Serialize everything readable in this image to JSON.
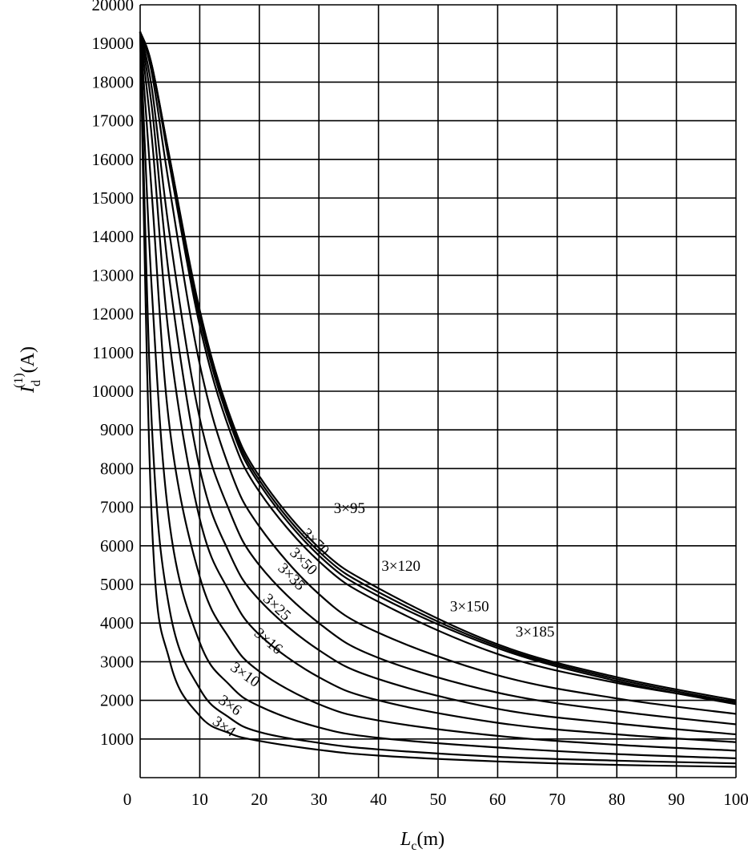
{
  "chart_data": {
    "type": "line",
    "xlabel_main": "L",
    "xlabel_sub": "c",
    "xlabel_unit": "(m)",
    "ylabel_main": "I",
    "ylabel_sub": "d",
    "ylabel_sup": "(1)",
    "ylabel_unit": "(A)",
    "xlim": [
      0,
      100
    ],
    "ylim": [
      0,
      20000
    ],
    "grid": true,
    "x_ticks": [
      0,
      10,
      20,
      30,
      40,
      50,
      60,
      70,
      80,
      90,
      100
    ],
    "y_ticks": [
      1000,
      2000,
      3000,
      4000,
      5000,
      6000,
      7000,
      8000,
      9000,
      10000,
      11000,
      12000,
      13000,
      14000,
      15000,
      16000,
      17000,
      18000,
      19000,
      20000
    ],
    "x_tick_labels": [
      "0",
      "10",
      "20",
      "30",
      "40",
      "50",
      "60",
      "70",
      "80",
      "90",
      "100"
    ],
    "y_tick_labels": [
      "1000",
      "2000",
      "3000",
      "4000",
      "5000",
      "6000",
      "7000",
      "8000",
      "9000",
      "10000",
      "11000",
      "12000",
      "13000",
      "14000",
      "15000",
      "16000",
      "17000",
      "18000",
      "19000",
      "20000"
    ],
    "series": [
      {
        "name": "3×4",
        "x": [
          0,
          2,
          5,
          10,
          15,
          20,
          30,
          40,
          60,
          80,
          100
        ],
        "y": [
          19300,
          6500,
          3000,
          1600,
          1150,
          950,
          720,
          570,
          420,
          330,
          280
        ]
      },
      {
        "name": "3×6",
        "x": [
          0,
          2,
          5,
          10,
          15,
          20,
          30,
          40,
          60,
          80,
          100
        ],
        "y": [
          19300,
          9000,
          4300,
          2300,
          1550,
          1180,
          900,
          730,
          540,
          440,
          370
        ]
      },
      {
        "name": "3×10",
        "x": [
          0,
          2,
          5,
          10,
          15,
          20,
          30,
          40,
          60,
          80,
          100
        ],
        "y": [
          19300,
          12500,
          6500,
          3500,
          2400,
          1850,
          1300,
          1030,
          780,
          610,
          500
        ]
      },
      {
        "name": "3×16",
        "x": [
          0,
          2,
          5,
          10,
          15,
          20,
          30,
          40,
          60,
          80,
          100
        ],
        "y": [
          19300,
          15000,
          9000,
          5200,
          3600,
          2750,
          1900,
          1480,
          1080,
          850,
          700
        ]
      },
      {
        "name": "3×25",
        "x": [
          0,
          2,
          5,
          10,
          15,
          20,
          30,
          40,
          60,
          80,
          100
        ],
        "y": [
          19300,
          16500,
          11200,
          6700,
          4800,
          3700,
          2600,
          2000,
          1420,
          1120,
          920
        ]
      },
      {
        "name": "3×35",
        "x": [
          0,
          2,
          5,
          10,
          15,
          20,
          30,
          40,
          60,
          80,
          100
        ],
        "y": [
          19300,
          17300,
          12800,
          8000,
          5800,
          4600,
          3300,
          2550,
          1780,
          1400,
          1120
        ]
      },
      {
        "name": "3×50",
        "x": [
          0,
          2,
          5,
          10,
          15,
          20,
          30,
          40,
          60,
          80,
          100
        ],
        "y": [
          19300,
          17800,
          14000,
          9300,
          6900,
          5500,
          4000,
          3100,
          2200,
          1720,
          1380
        ]
      },
      {
        "name": "3×70",
        "x": [
          0,
          2,
          5,
          10,
          15,
          20,
          30,
          40,
          60,
          80,
          100
        ],
        "y": [
          19300,
          18200,
          15200,
          10700,
          8000,
          6500,
          4750,
          3750,
          2650,
          2050,
          1650
        ]
      },
      {
        "name": "3×95",
        "x": [
          0,
          2,
          5,
          10,
          15,
          20,
          30,
          40,
          60,
          80,
          100
        ],
        "y": [
          19300,
          18400,
          15800,
          11700,
          9000,
          7400,
          5600,
          4550,
          3200,
          2450,
          1950
        ]
      },
      {
        "name": "3×120",
        "x": [
          0,
          2,
          5,
          10,
          15,
          20,
          30,
          40,
          60,
          80,
          100
        ],
        "y": [
          19300,
          18400,
          15900,
          11900,
          9200,
          7600,
          5750,
          4700,
          3350,
          2500,
          1900
        ]
      },
      {
        "name": "3×150",
        "x": [
          0,
          2,
          5,
          10,
          15,
          20,
          30,
          40,
          60,
          80,
          100
        ],
        "y": [
          19300,
          18400,
          16000,
          12000,
          9300,
          7700,
          5850,
          4800,
          3400,
          2550,
          1950
        ]
      },
      {
        "name": "3×185",
        "x": [
          0,
          2,
          5,
          10,
          15,
          20,
          30,
          40,
          60,
          80,
          100
        ],
        "y": [
          19300,
          18400,
          16000,
          12100,
          9400,
          7800,
          5950,
          4900,
          3450,
          2600,
          2000
        ]
      }
    ],
    "curve_labels": [
      {
        "text": "3×4",
        "x": 12,
        "y": 1400,
        "angle": 35
      },
      {
        "text": "3×6",
        "x": 13,
        "y": 1950,
        "angle": 35
      },
      {
        "text": "3×10",
        "x": 15,
        "y": 2800,
        "angle": 35
      },
      {
        "text": "3×16",
        "x": 19,
        "y": 3700,
        "angle": 40
      },
      {
        "text": "3×25",
        "x": 20.5,
        "y": 4600,
        "angle": 43
      },
      {
        "text": "3×35",
        "x": 23,
        "y": 5400,
        "angle": 45
      },
      {
        "text": "3×50",
        "x": 25,
        "y": 5800,
        "angle": 45
      },
      {
        "text": "3×70",
        "x": 27,
        "y": 6300,
        "angle": 45
      },
      {
        "text": "3×95",
        "x": 32.5,
        "y": 6850,
        "angle": 0
      },
      {
        "text": "3×120",
        "x": 40.5,
        "y": 5350,
        "angle": 0
      },
      {
        "text": "3×150",
        "x": 52,
        "y": 4300,
        "angle": 0
      },
      {
        "text": "3×185",
        "x": 63,
        "y": 3650,
        "angle": 0
      }
    ]
  }
}
